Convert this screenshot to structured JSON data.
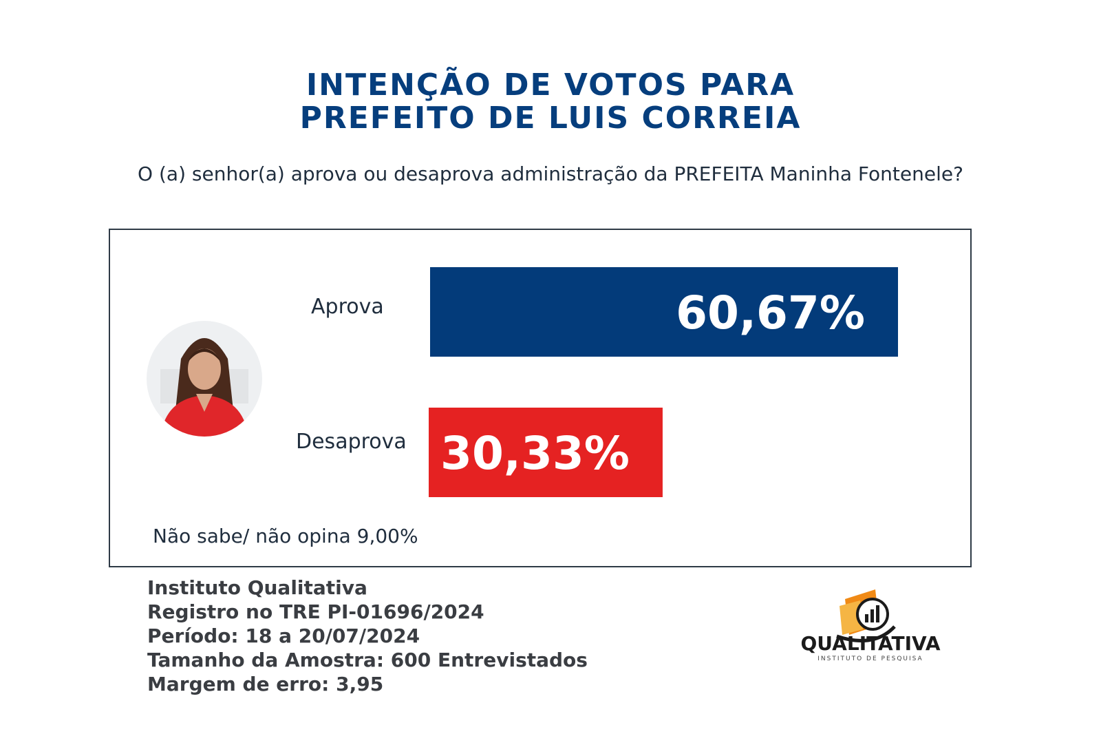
{
  "title_lines": [
    "INTENÇÃO DE VOTOS PARA",
    "PREFEITO DE LUIS CORREIA"
  ],
  "question": "O (a) senhor(a) aprova ou desaprova administração da  PREFEITA Maninha Fontenele?",
  "colors": {
    "title": "#063e7d",
    "aprova": "#033b7a",
    "desaprova": "#e52222",
    "text": "#1f2d3d"
  },
  "chart_data": {
    "type": "bar",
    "orientation": "horizontal",
    "categories": [
      "Aprova",
      "Desaprova"
    ],
    "values": [
      60.67,
      30.33
    ],
    "value_labels": [
      "60,67%",
      "30,33%"
    ],
    "colors": [
      "#033b7a",
      "#e52222"
    ],
    "grid": false,
    "other": {
      "label": "Não sabe/ não opina 9,00%",
      "value": 9.0
    }
  },
  "footer": {
    "lines": [
      "Instituto Qualitativa",
      "Registro no TRE PI-01696/2024",
      "Período: 18 a 20/07/2024",
      "Tamanho da Amostra: 600 Entrevistados",
      "Margem de erro: 3,95"
    ]
  },
  "logo": {
    "name": "QUALITATIVA",
    "tagline": "INSTITUTO DE PESQUISA"
  }
}
